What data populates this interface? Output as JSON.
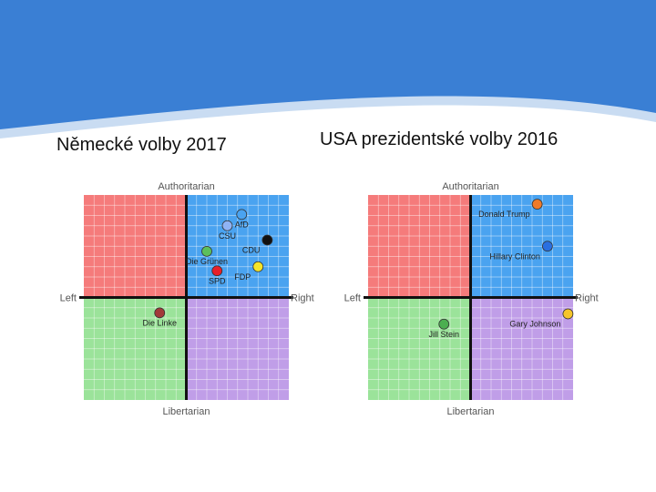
{
  "slide": {
    "title_left": "Německé volby 2017",
    "title_right": "USA prezidentské volby 2016"
  },
  "colors": {
    "banner_blue": "#3a7fd4",
    "banner_light": "#c9dcf2",
    "authoritarian_left": "#f57b7b",
    "authoritarian_right": "#4aa3f0",
    "libertarian_left": "#9be39a",
    "libertarian_right": "#c09ee8"
  },
  "chart_data": [
    {
      "type": "scatter",
      "title": "",
      "axes": {
        "top": "Authoritarian",
        "bottom": "Libertarian",
        "left": "Left",
        "right": "Right"
      },
      "xlim": [
        -10,
        10
      ],
      "ylim": [
        -10,
        10
      ],
      "grid": true,
      "points": [
        {
          "label": "AfD",
          "x": 5.4,
          "y": 8.1,
          "color": "#4aa3f0"
        },
        {
          "label": "CSU",
          "x": 4.0,
          "y": 7.0,
          "color": "#8fb3f5"
        },
        {
          "label": "CDU",
          "x": 7.9,
          "y": 5.6,
          "color": "#111111"
        },
        {
          "label": "Die Grünen",
          "x": 2.0,
          "y": 4.5,
          "color": "#5cc05c"
        },
        {
          "label": "SPD",
          "x": 3.0,
          "y": 2.6,
          "color": "#e8202a"
        },
        {
          "label": "FDP",
          "x": 7.0,
          "y": 3.0,
          "color": "#f5e52a"
        },
        {
          "label": "Die Linke",
          "x": -2.6,
          "y": -1.5,
          "color": "#a23a3a"
        }
      ]
    },
    {
      "type": "scatter",
      "title": "",
      "axes": {
        "top": "Authoritarian",
        "bottom": "Libertarian",
        "left": "Left",
        "right": "Right"
      },
      "xlim": [
        -10,
        10
      ],
      "ylim": [
        -10,
        10
      ],
      "grid": true,
      "points": [
        {
          "label": "Donald Trump",
          "x": 6.5,
          "y": 9.1,
          "color": "#f07a2a"
        },
        {
          "label": "Hillary Clinton",
          "x": 7.5,
          "y": 5.0,
          "color": "#2a6fe0"
        },
        {
          "label": "Gary Johnson",
          "x": 9.5,
          "y": -1.6,
          "color": "#f5c52a"
        },
        {
          "label": "Jill Stein",
          "x": -2.6,
          "y": -2.6,
          "color": "#4caf50"
        }
      ]
    }
  ]
}
